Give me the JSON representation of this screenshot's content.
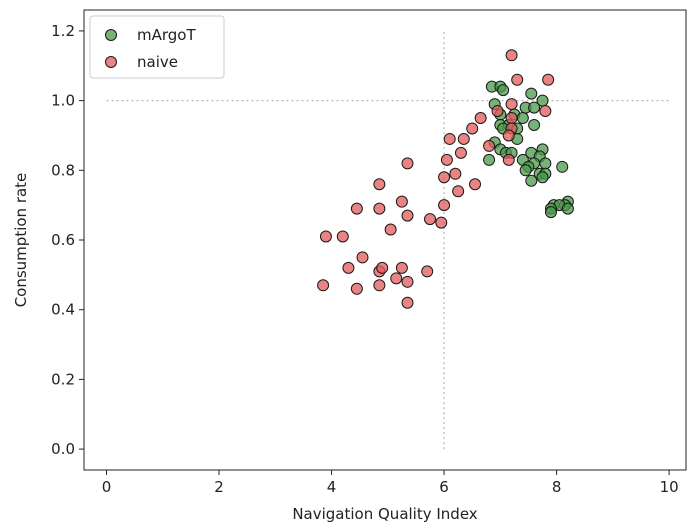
{
  "chart_data": {
    "type": "scatter",
    "xlabel": "Navigation Quality Index",
    "ylabel": "Consumption rate",
    "xlim": [
      -0.4,
      10.3
    ],
    "ylim": [
      -0.06,
      1.26
    ],
    "x_ticks": [
      0,
      2,
      4,
      6,
      8,
      10
    ],
    "y_ticks": [
      0.0,
      0.2,
      0.4,
      0.6,
      0.8,
      1.0,
      1.2
    ],
    "x_tick_labels": [
      "0",
      "2",
      "4",
      "6",
      "8",
      "10"
    ],
    "y_tick_labels": [
      "0.0",
      "0.2",
      "0.4",
      "0.6",
      "0.8",
      "1.0",
      "1.2"
    ],
    "grid": false,
    "legend_position": "top-left",
    "reference_lines": [
      {
        "orientation": "vertical",
        "value": 6,
        "from": 0,
        "to": 1.2,
        "style": "dotted"
      },
      {
        "orientation": "horizontal",
        "value": 1.0,
        "from": 0,
        "to": 10,
        "style": "dotted"
      }
    ],
    "series": [
      {
        "name": "mArgoT",
        "color": "#4a9a4a",
        "points": [
          [
            6.85,
            1.04
          ],
          [
            7.0,
            1.04
          ],
          [
            7.05,
            1.03
          ],
          [
            7.55,
            1.02
          ],
          [
            7.75,
            1.0
          ],
          [
            6.9,
            0.99
          ],
          [
            7.45,
            0.98
          ],
          [
            7.6,
            0.98
          ],
          [
            7.0,
            0.96
          ],
          [
            7.25,
            0.96
          ],
          [
            7.4,
            0.95
          ],
          [
            7.0,
            0.93
          ],
          [
            7.15,
            0.93
          ],
          [
            7.3,
            0.92
          ],
          [
            7.6,
            0.93
          ],
          [
            7.05,
            0.92
          ],
          [
            7.3,
            0.89
          ],
          [
            6.9,
            0.88
          ],
          [
            7.0,
            0.86
          ],
          [
            7.1,
            0.85
          ],
          [
            7.2,
            0.85
          ],
          [
            7.75,
            0.86
          ],
          [
            7.55,
            0.85
          ],
          [
            6.8,
            0.83
          ],
          [
            7.7,
            0.84
          ],
          [
            7.4,
            0.83
          ],
          [
            7.6,
            0.82
          ],
          [
            7.8,
            0.82
          ],
          [
            7.5,
            0.81
          ],
          [
            8.1,
            0.81
          ],
          [
            7.45,
            0.8
          ],
          [
            7.7,
            0.79
          ],
          [
            7.8,
            0.79
          ],
          [
            7.55,
            0.77
          ],
          [
            7.75,
            0.78
          ],
          [
            8.2,
            0.71
          ],
          [
            8.15,
            0.7
          ],
          [
            7.95,
            0.7
          ],
          [
            8.05,
            0.7
          ],
          [
            7.9,
            0.69
          ],
          [
            8.2,
            0.69
          ],
          [
            7.9,
            0.68
          ]
        ]
      },
      {
        "name": "naive",
        "color": "#e35a5a",
        "points": [
          [
            7.2,
            1.13
          ],
          [
            7.85,
            1.06
          ],
          [
            7.3,
            1.06
          ],
          [
            7.2,
            0.99
          ],
          [
            6.95,
            0.97
          ],
          [
            7.8,
            0.97
          ],
          [
            7.2,
            0.95
          ],
          [
            6.65,
            0.95
          ],
          [
            7.2,
            0.92
          ],
          [
            6.5,
            0.92
          ],
          [
            7.15,
            0.9
          ],
          [
            6.35,
            0.89
          ],
          [
            6.1,
            0.89
          ],
          [
            6.8,
            0.87
          ],
          [
            6.3,
            0.85
          ],
          [
            6.05,
            0.83
          ],
          [
            7.15,
            0.83
          ],
          [
            5.35,
            0.82
          ],
          [
            6.2,
            0.79
          ],
          [
            6.0,
            0.78
          ],
          [
            4.85,
            0.76
          ],
          [
            6.55,
            0.76
          ],
          [
            6.25,
            0.74
          ],
          [
            5.25,
            0.71
          ],
          [
            6.0,
            0.7
          ],
          [
            4.45,
            0.69
          ],
          [
            4.85,
            0.69
          ],
          [
            5.35,
            0.67
          ],
          [
            5.75,
            0.66
          ],
          [
            5.95,
            0.65
          ],
          [
            5.05,
            0.63
          ],
          [
            3.9,
            0.61
          ],
          [
            4.2,
            0.61
          ],
          [
            4.55,
            0.55
          ],
          [
            4.3,
            0.52
          ],
          [
            5.25,
            0.52
          ],
          [
            4.85,
            0.51
          ],
          [
            4.9,
            0.52
          ],
          [
            5.7,
            0.51
          ],
          [
            5.15,
            0.49
          ],
          [
            5.35,
            0.48
          ],
          [
            3.85,
            0.47
          ],
          [
            4.85,
            0.47
          ],
          [
            4.45,
            0.46
          ],
          [
            5.35,
            0.42
          ]
        ]
      }
    ]
  }
}
